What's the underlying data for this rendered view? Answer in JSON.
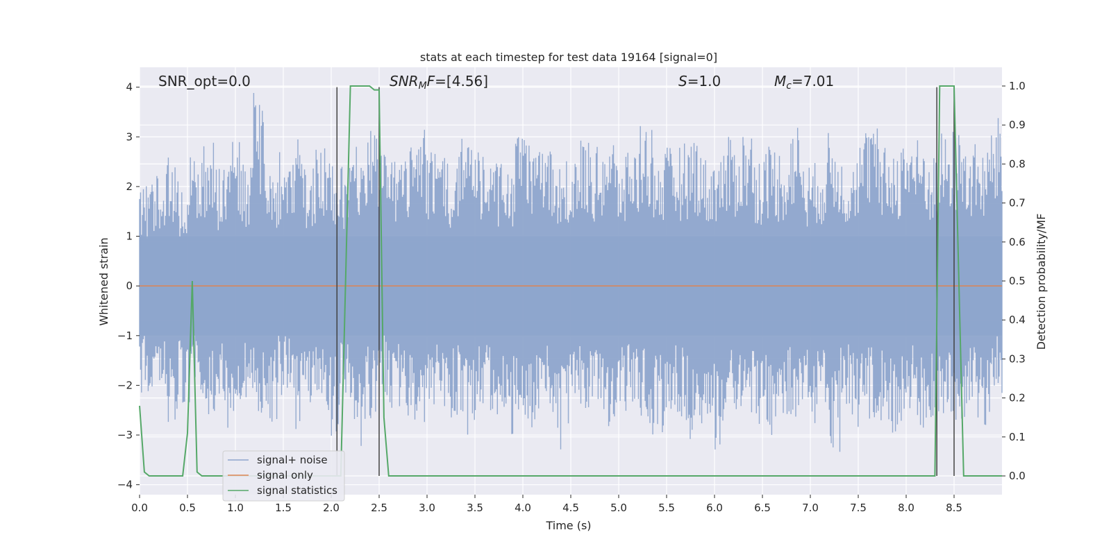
{
  "chart_data": {
    "type": "line",
    "title": "stats at each timestep for test data 19164 [signal=0]",
    "xlabel": "Time (s)",
    "ylabel": "Whitened strain",
    "ylabel_right": "Detection probability/MF",
    "xlim": [
      0.0,
      9.0
    ],
    "ylim": [
      -4.2,
      4.4
    ],
    "ylim_right": [
      -0.048,
      1.048
    ],
    "x_ticks": [
      "0.0",
      "0.5",
      "1.0",
      "1.5",
      "2.0",
      "2.5",
      "3.0",
      "3.5",
      "4.0",
      "4.5",
      "5.0",
      "5.5",
      "6.0",
      "6.5",
      "7.0",
      "7.5",
      "8.0",
      "8.5"
    ],
    "y_ticks": [
      "−4",
      "−3",
      "−2",
      "−1",
      "0",
      "1",
      "2",
      "3",
      "4"
    ],
    "y_ticks_right": [
      "0.0",
      "0.1",
      "0.2",
      "0.3",
      "0.4",
      "0.5",
      "0.6",
      "0.7",
      "0.8",
      "0.9",
      "1.0"
    ],
    "grid": true,
    "legend_position": "lower-left",
    "annotations": {
      "snr_opt": "SNR_opt=0.0",
      "snr_mf_prefix": "SNR",
      "snr_mf_sub": "M",
      "snr_mf_rest": "F",
      "snr_mf_value": "=[4.56]",
      "s_label": "S",
      "s_value": "=1.0",
      "mc_label": "M",
      "mc_sub": "c",
      "mc_value": "=7.01"
    },
    "series": [
      {
        "name": "signal+ noise",
        "color": "#8ea5cc",
        "description_only_envelope": true,
        "envelope_upper": [
          2.1,
          2.4,
          2.8,
          2.2,
          2.6,
          2.9,
          2.4,
          3.2,
          2.5,
          3.9,
          2.3,
          2.7,
          3.0,
          2.4,
          2.8,
          2.6,
          2.5,
          2.9,
          3.3,
          2.7,
          2.5,
          2.8,
          3.2,
          2.9,
          2.6,
          3.1,
          2.8,
          2.7,
          2.6,
          2.4,
          3.0,
          2.9,
          2.8,
          2.5,
          2.7,
          3.0,
          2.8,
          3.1,
          2.6,
          2.9,
          3.4,
          2.7,
          2.8,
          2.9,
          3.1,
          2.6,
          2.8,
          3.0,
          3.2,
          2.7,
          2.9,
          2.8,
          3.3,
          2.5,
          2.7,
          3.1,
          2.6,
          3.0,
          3.4,
          2.8,
          2.9,
          3.2,
          3.0,
          2.7,
          3.1,
          3.2,
          2.9,
          2.8,
          3.4
        ],
        "envelope_lower": [
          -2.2,
          -2.0,
          -2.8,
          -2.4,
          -2.1,
          -2.6,
          -2.5,
          -2.9,
          -2.3,
          -2.6,
          -2.8,
          -2.2,
          -2.9,
          -2.5,
          -2.6,
          -3.1,
          -2.4,
          -3.3,
          -2.7,
          -2.2,
          -2.5,
          -2.8,
          -2.9,
          -2.4,
          -2.7,
          -2.6,
          -3.0,
          -2.5,
          -2.8,
          -3.0,
          -2.6,
          -2.9,
          -2.4,
          -3.3,
          -2.8,
          -2.5,
          -2.7,
          -2.9,
          -2.6,
          -2.4,
          -2.8,
          -3.0,
          -2.5,
          -2.7,
          -3.1,
          -2.6,
          -3.4,
          -2.5,
          -2.8,
          -2.9,
          -3.0,
          -2.6,
          -2.7,
          -2.8,
          -2.4,
          -3.4,
          -2.6,
          -2.9,
          -2.7,
          -2.8,
          -3.0,
          -2.6,
          -2.9,
          -2.7,
          -2.8,
          -3.2,
          -2.6,
          -2.9,
          -2.2
        ]
      },
      {
        "name": "signal only",
        "color": "#dd8452",
        "x": [
          0.0,
          9.0
        ],
        "y": [
          0.0,
          0.0
        ]
      },
      {
        "name": "signal statistics",
        "color": "#55a868",
        "axis": "right",
        "x": [
          0.0,
          0.05,
          0.1,
          0.15,
          0.2,
          0.25,
          0.3,
          0.35,
          0.4,
          0.45,
          0.5,
          0.55,
          0.6,
          0.65,
          0.7,
          0.8,
          1.0,
          1.5,
          2.0,
          2.05,
          2.1,
          2.15,
          2.2,
          2.3,
          2.4,
          2.45,
          2.5,
          2.55,
          2.6,
          2.65,
          2.7,
          3.0,
          4.0,
          5.0,
          6.0,
          7.0,
          8.0,
          8.3,
          8.35,
          8.4,
          8.45,
          8.5,
          8.55,
          8.6,
          8.65,
          8.7,
          8.8,
          9.0
        ],
        "y": [
          0.18,
          0.01,
          0.0,
          0.0,
          0.0,
          0.0,
          0.0,
          0.0,
          0.0,
          0.0,
          0.11,
          0.5,
          0.01,
          0.0,
          0.0,
          0.0,
          0.0,
          0.0,
          0.0,
          0.0,
          0.0,
          0.5,
          1.0,
          1.0,
          1.0,
          0.99,
          0.99,
          0.15,
          0.0,
          0.0,
          0.0,
          0.0,
          0.0,
          0.0,
          0.0,
          0.0,
          0.0,
          0.0,
          1.0,
          1.0,
          1.0,
          1.0,
          0.5,
          0.0,
          0.0,
          0.0,
          0.0,
          0.0
        ]
      }
    ],
    "vertical_lines": [
      {
        "x": 2.06,
        "color": "#404040"
      },
      {
        "x": 2.5,
        "color": "#404040"
      },
      {
        "x": 8.32,
        "color": "#404040"
      },
      {
        "x": 8.5,
        "color": "#404040"
      }
    ]
  }
}
